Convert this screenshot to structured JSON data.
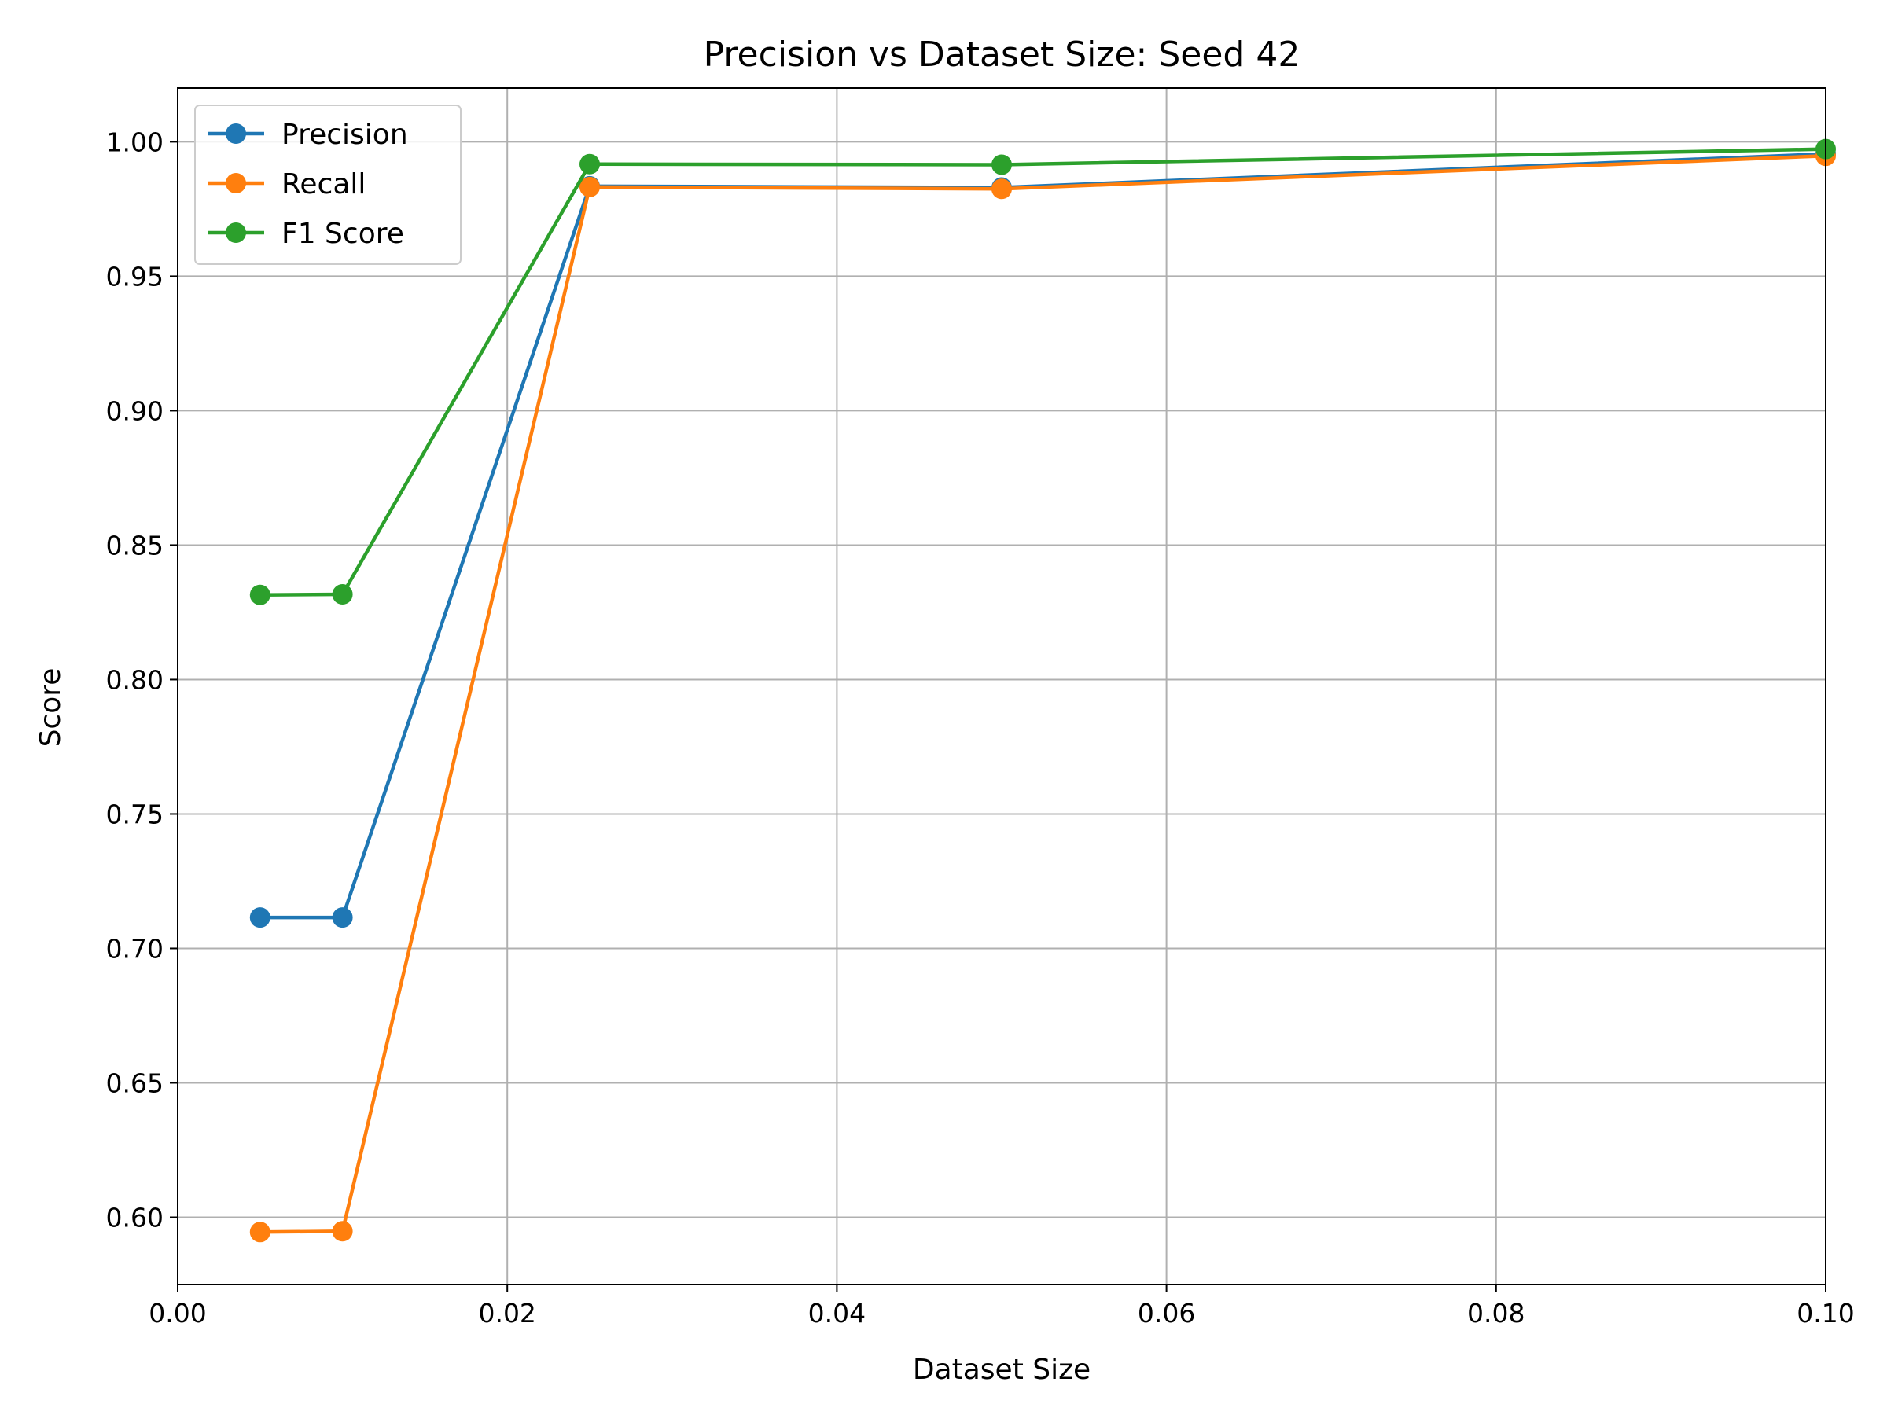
{
  "chart_data": {
    "type": "line",
    "title": "Precision vs Dataset Size: Seed 42",
    "xlabel": "Dataset Size",
    "ylabel": "Score",
    "xlim": [
      0.0,
      0.1
    ],
    "ylim": [
      0.575,
      1.02
    ],
    "xticks": [
      0.0,
      0.02,
      0.04,
      0.06,
      0.08,
      0.1
    ],
    "xtick_labels": [
      "0.00",
      "0.02",
      "0.04",
      "0.06",
      "0.08",
      "0.10"
    ],
    "yticks": [
      0.6,
      0.65,
      0.7,
      0.75,
      0.8,
      0.85,
      0.9,
      0.95,
      1.0
    ],
    "ytick_labels": [
      "0.60",
      "0.65",
      "0.70",
      "0.75",
      "0.80",
      "0.85",
      "0.90",
      "0.95",
      "1.00"
    ],
    "grid": true,
    "legend_position": "upper-left",
    "x": [
      0.005,
      0.01,
      0.025,
      0.05,
      0.1
    ],
    "series": [
      {
        "name": "Precision",
        "color": "#1f77b4",
        "marker": "circle",
        "values": [
          0.7115,
          0.7115,
          0.9835,
          0.983,
          0.9955
        ]
      },
      {
        "name": "Recall",
        "color": "#ff7f0e",
        "marker": "circle",
        "values": [
          0.5945,
          0.5948,
          0.9832,
          0.9825,
          0.9948
        ]
      },
      {
        "name": "F1 Score",
        "color": "#2ca02c",
        "marker": "circle",
        "values": [
          0.8315,
          0.8317,
          0.9917,
          0.9915,
          0.9973
        ]
      }
    ]
  }
}
